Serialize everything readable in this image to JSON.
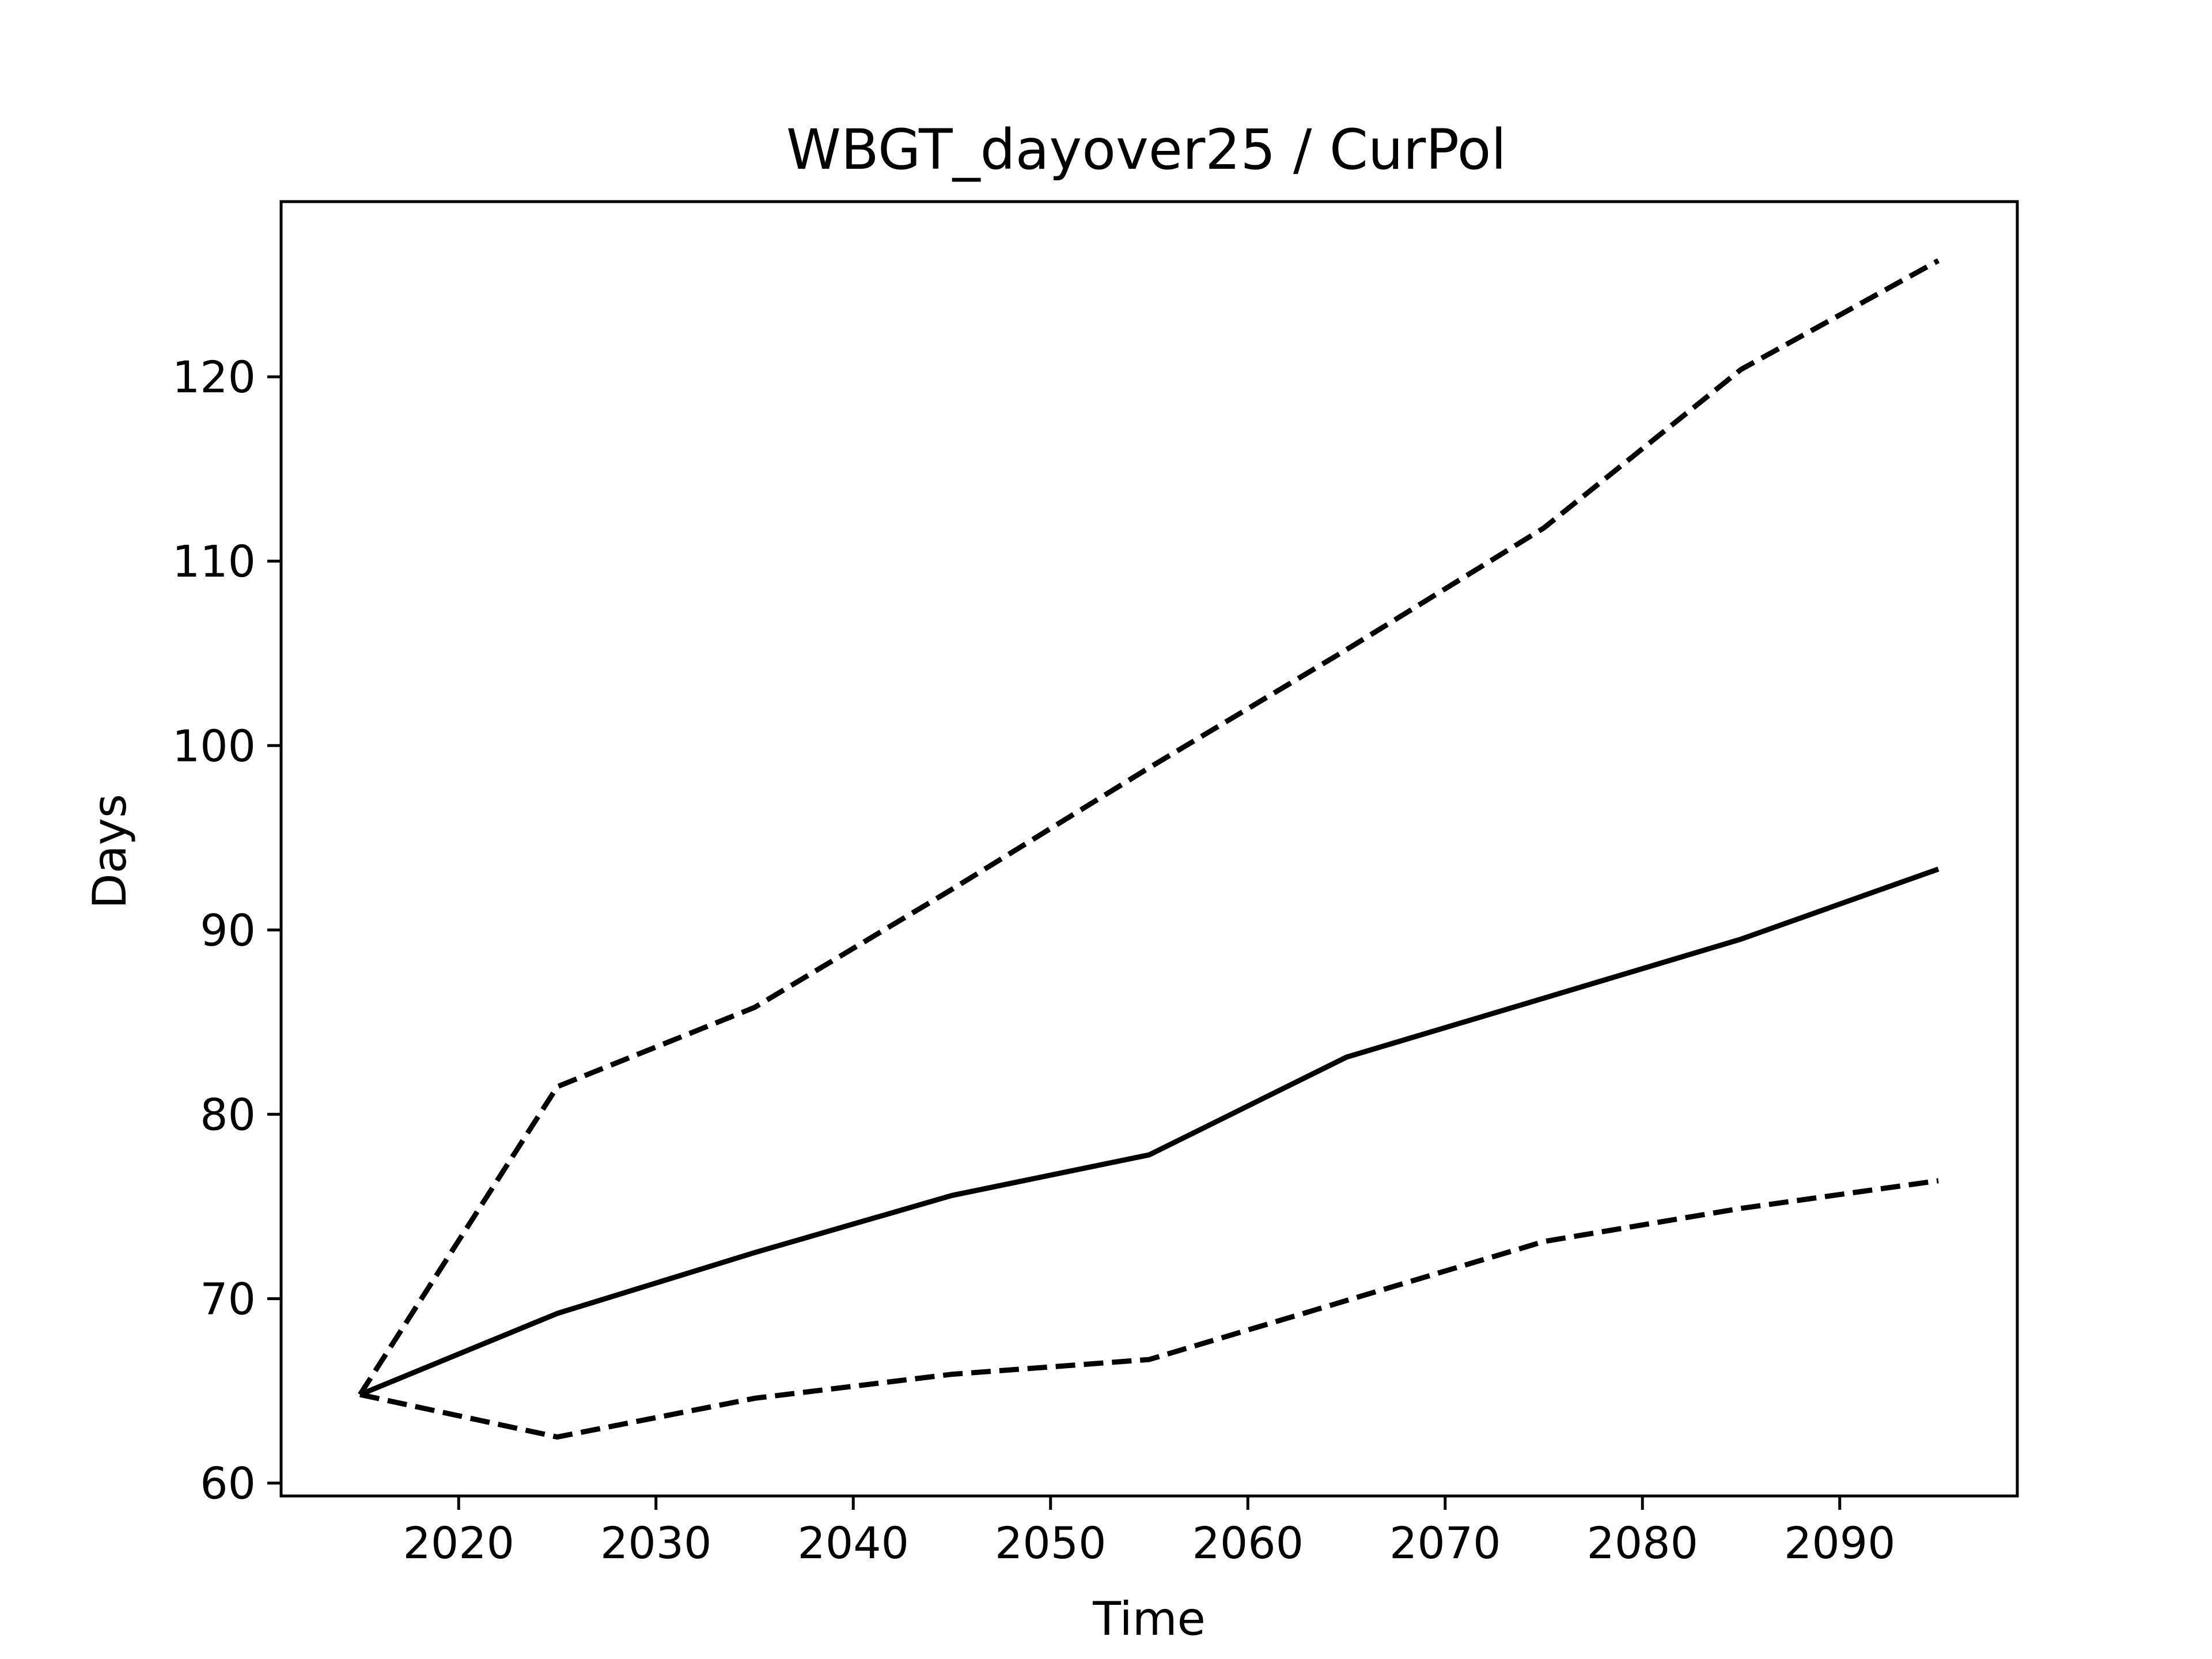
{
  "chart_data": {
    "type": "line",
    "title": "WBGT_dayover25 / CurPol",
    "xlabel": "Time",
    "ylabel": "Days",
    "xlim": [
      2011,
      2099
    ],
    "ylim": [
      59.3,
      129.5
    ],
    "xticks": [
      2020,
      2030,
      2040,
      2050,
      2060,
      2070,
      2080,
      2090
    ],
    "yticks": [
      60,
      70,
      80,
      90,
      100,
      110,
      120
    ],
    "grid": false,
    "legend": "none",
    "x": [
      2015,
      2025,
      2035,
      2045,
      2055,
      2065,
      2075,
      2085,
      2095
    ],
    "series": [
      {
        "style": "dashed",
        "color": "#000000",
        "values": [
          64.8,
          81.5,
          85.8,
          92.2,
          98.8,
          105.2,
          111.8,
          120.4,
          126.3
        ]
      },
      {
        "style": "solid",
        "color": "#000000",
        "values": [
          64.8,
          69.2,
          72.5,
          75.6,
          77.8,
          83.1,
          86.3,
          89.5,
          93.3
        ]
      },
      {
        "style": "dashed",
        "color": "#000000",
        "values": [
          64.8,
          62.5,
          64.6,
          65.9,
          66.7,
          69.9,
          73.1,
          74.9,
          76.4
        ]
      }
    ]
  }
}
